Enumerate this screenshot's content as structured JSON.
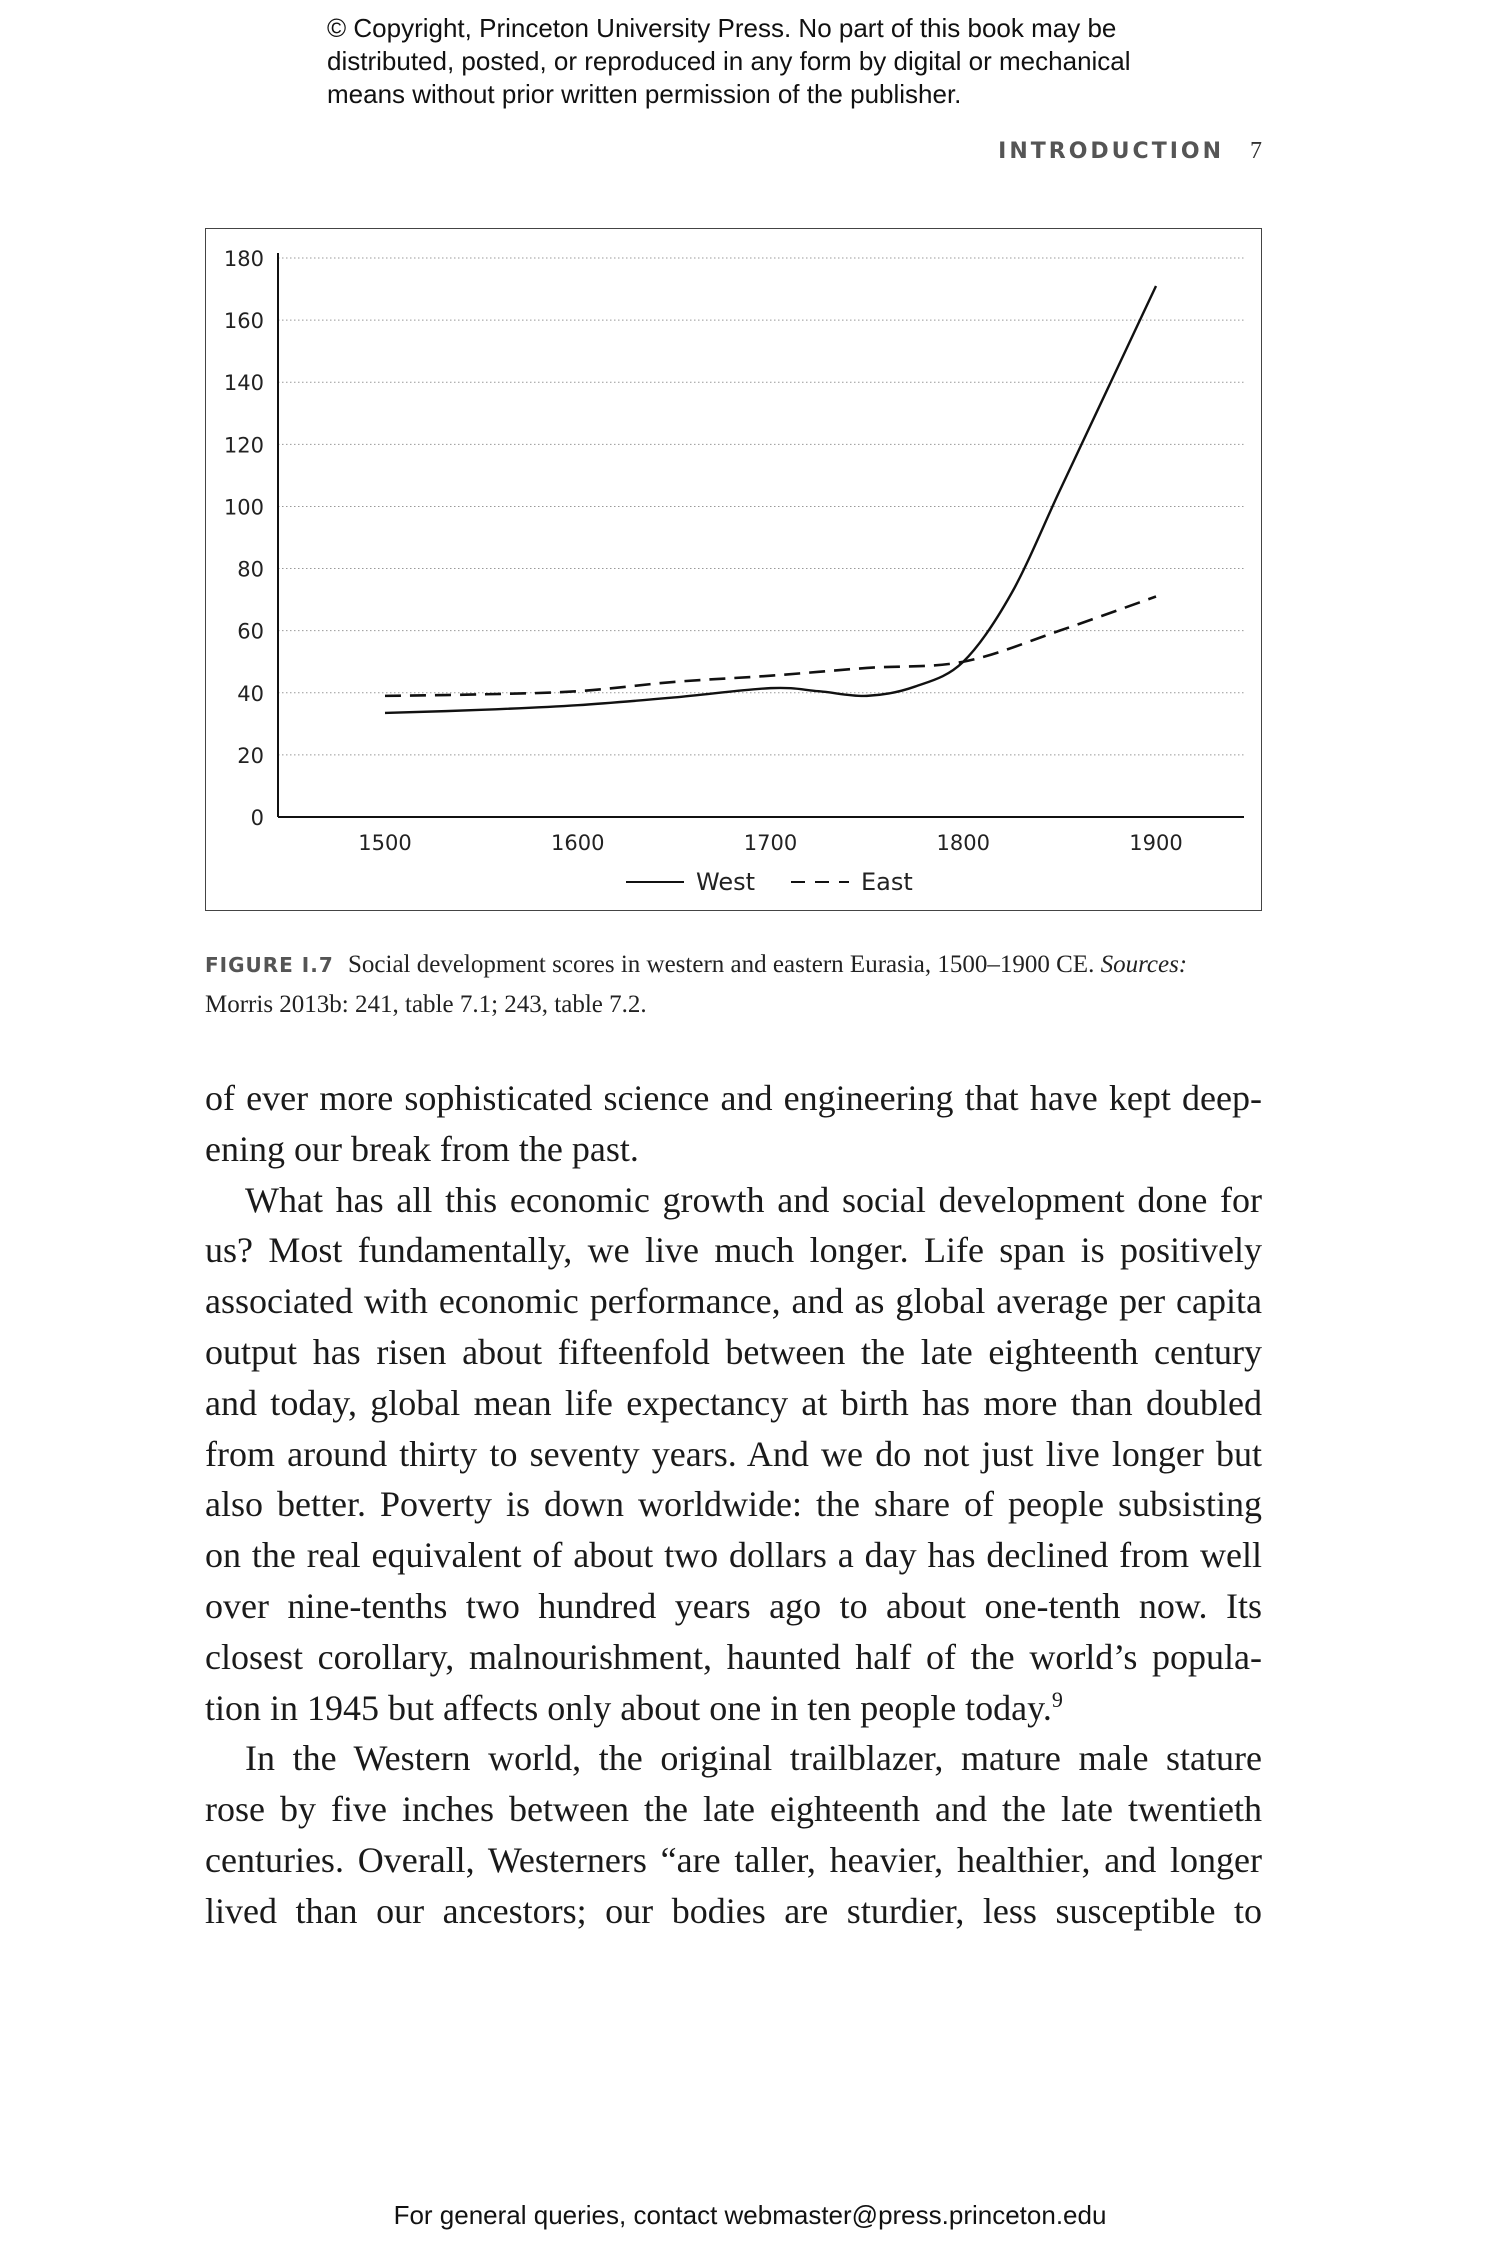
{
  "copyright": [
    "© Copyright, Princeton University Press. No part of this book may be",
    "distributed, posted, or reproduced in any form by digital or mechanical",
    "means without prior written permission of the publisher."
  ],
  "running_head": {
    "section": "INTRODUCTION",
    "page_number": "7"
  },
  "chart_data": {
    "type": "line",
    "title": "",
    "xlabel": "",
    "ylabel": "",
    "xlim": [
      1450,
      1950
    ],
    "ylim": [
      0,
      180
    ],
    "x_ticks": [
      "1500",
      "1600",
      "1700",
      "1800",
      "1900"
    ],
    "y_ticks": [
      "0",
      "20",
      "40",
      "60",
      "80",
      "100",
      "120",
      "140",
      "160",
      "180"
    ],
    "grid": "horizontal dotted",
    "legend_position": "bottom",
    "series": [
      {
        "name": "West",
        "style": "solid",
        "x": [
          1500,
          1550,
          1600,
          1650,
          1700,
          1725,
          1750,
          1775,
          1800,
          1825,
          1850,
          1875,
          1900
        ],
        "y": [
          33.5,
          34.5,
          36,
          38.5,
          41.5,
          40.5,
          39,
          42,
          50,
          72,
          105,
          138,
          171
        ]
      },
      {
        "name": "East",
        "style": "dashed",
        "x": [
          1500,
          1550,
          1600,
          1650,
          1700,
          1750,
          1800,
          1850,
          1900
        ],
        "y": [
          39,
          39.5,
          40.5,
          43.5,
          45.5,
          48,
          50,
          60,
          71
        ]
      }
    ]
  },
  "caption": {
    "label": "FIGURE I.7",
    "text": "Social development scores in western and eastern Eurasia, 1500–1900 CE.",
    "sources_label": "Sources:",
    "sources": "Morris 2013b: 241, table 7.1; 243, table 7.2."
  },
  "body": {
    "lines": [
      {
        "text": "of ever more sophisticated science and engineering that have kept deep-",
        "indent": false,
        "last": false
      },
      {
        "text": "ening our break from the past.",
        "indent": false,
        "last": true
      },
      {
        "text": "What has all this economic growth and social development done for",
        "indent": true,
        "last": false
      },
      {
        "text": "us? Most fundamentally, we live much longer. Life span is positively",
        "indent": false,
        "last": false
      },
      {
        "text": "associated with economic performance, and as global average per capita",
        "indent": false,
        "last": false
      },
      {
        "text": "output has risen about fifteenfold between the late eighteenth century",
        "indent": false,
        "last": false
      },
      {
        "text": "and today, global mean life expectancy at birth has more than doubled",
        "indent": false,
        "last": false
      },
      {
        "text": "from around thirty to seventy years. And we do not just live longer but",
        "indent": false,
        "last": false
      },
      {
        "text": "also better. Poverty is down worldwide: the share of people subsisting",
        "indent": false,
        "last": false
      },
      {
        "text": "on the real equivalent of about two dollars a day has declined from well",
        "indent": false,
        "last": false
      },
      {
        "text": "over nine-tenths two hundred years ago to about one-tenth now. Its",
        "indent": false,
        "last": false
      },
      {
        "text": "closest corollary, malnourishment, haunted half of the world’s popula-",
        "indent": false,
        "last": false
      },
      {
        "text": "tion in 1945 but affects only about one in ten people today.",
        "indent": false,
        "last": true,
        "note": "9"
      },
      {
        "text": "In the Western world, the original trailblazer, mature male stature",
        "indent": true,
        "last": false
      },
      {
        "text": "rose by five inches between the late eighteenth and the late twentieth",
        "indent": false,
        "last": false
      },
      {
        "text": "centuries. Overall, Westerners “are taller, heavier, healthier, and longer",
        "indent": false,
        "last": false
      },
      {
        "text": "lived than our ancestors; our bodies are sturdier, less susceptible to",
        "indent": false,
        "last": false
      }
    ]
  },
  "footer": "For general queries, contact webmaster@press.princeton.edu"
}
